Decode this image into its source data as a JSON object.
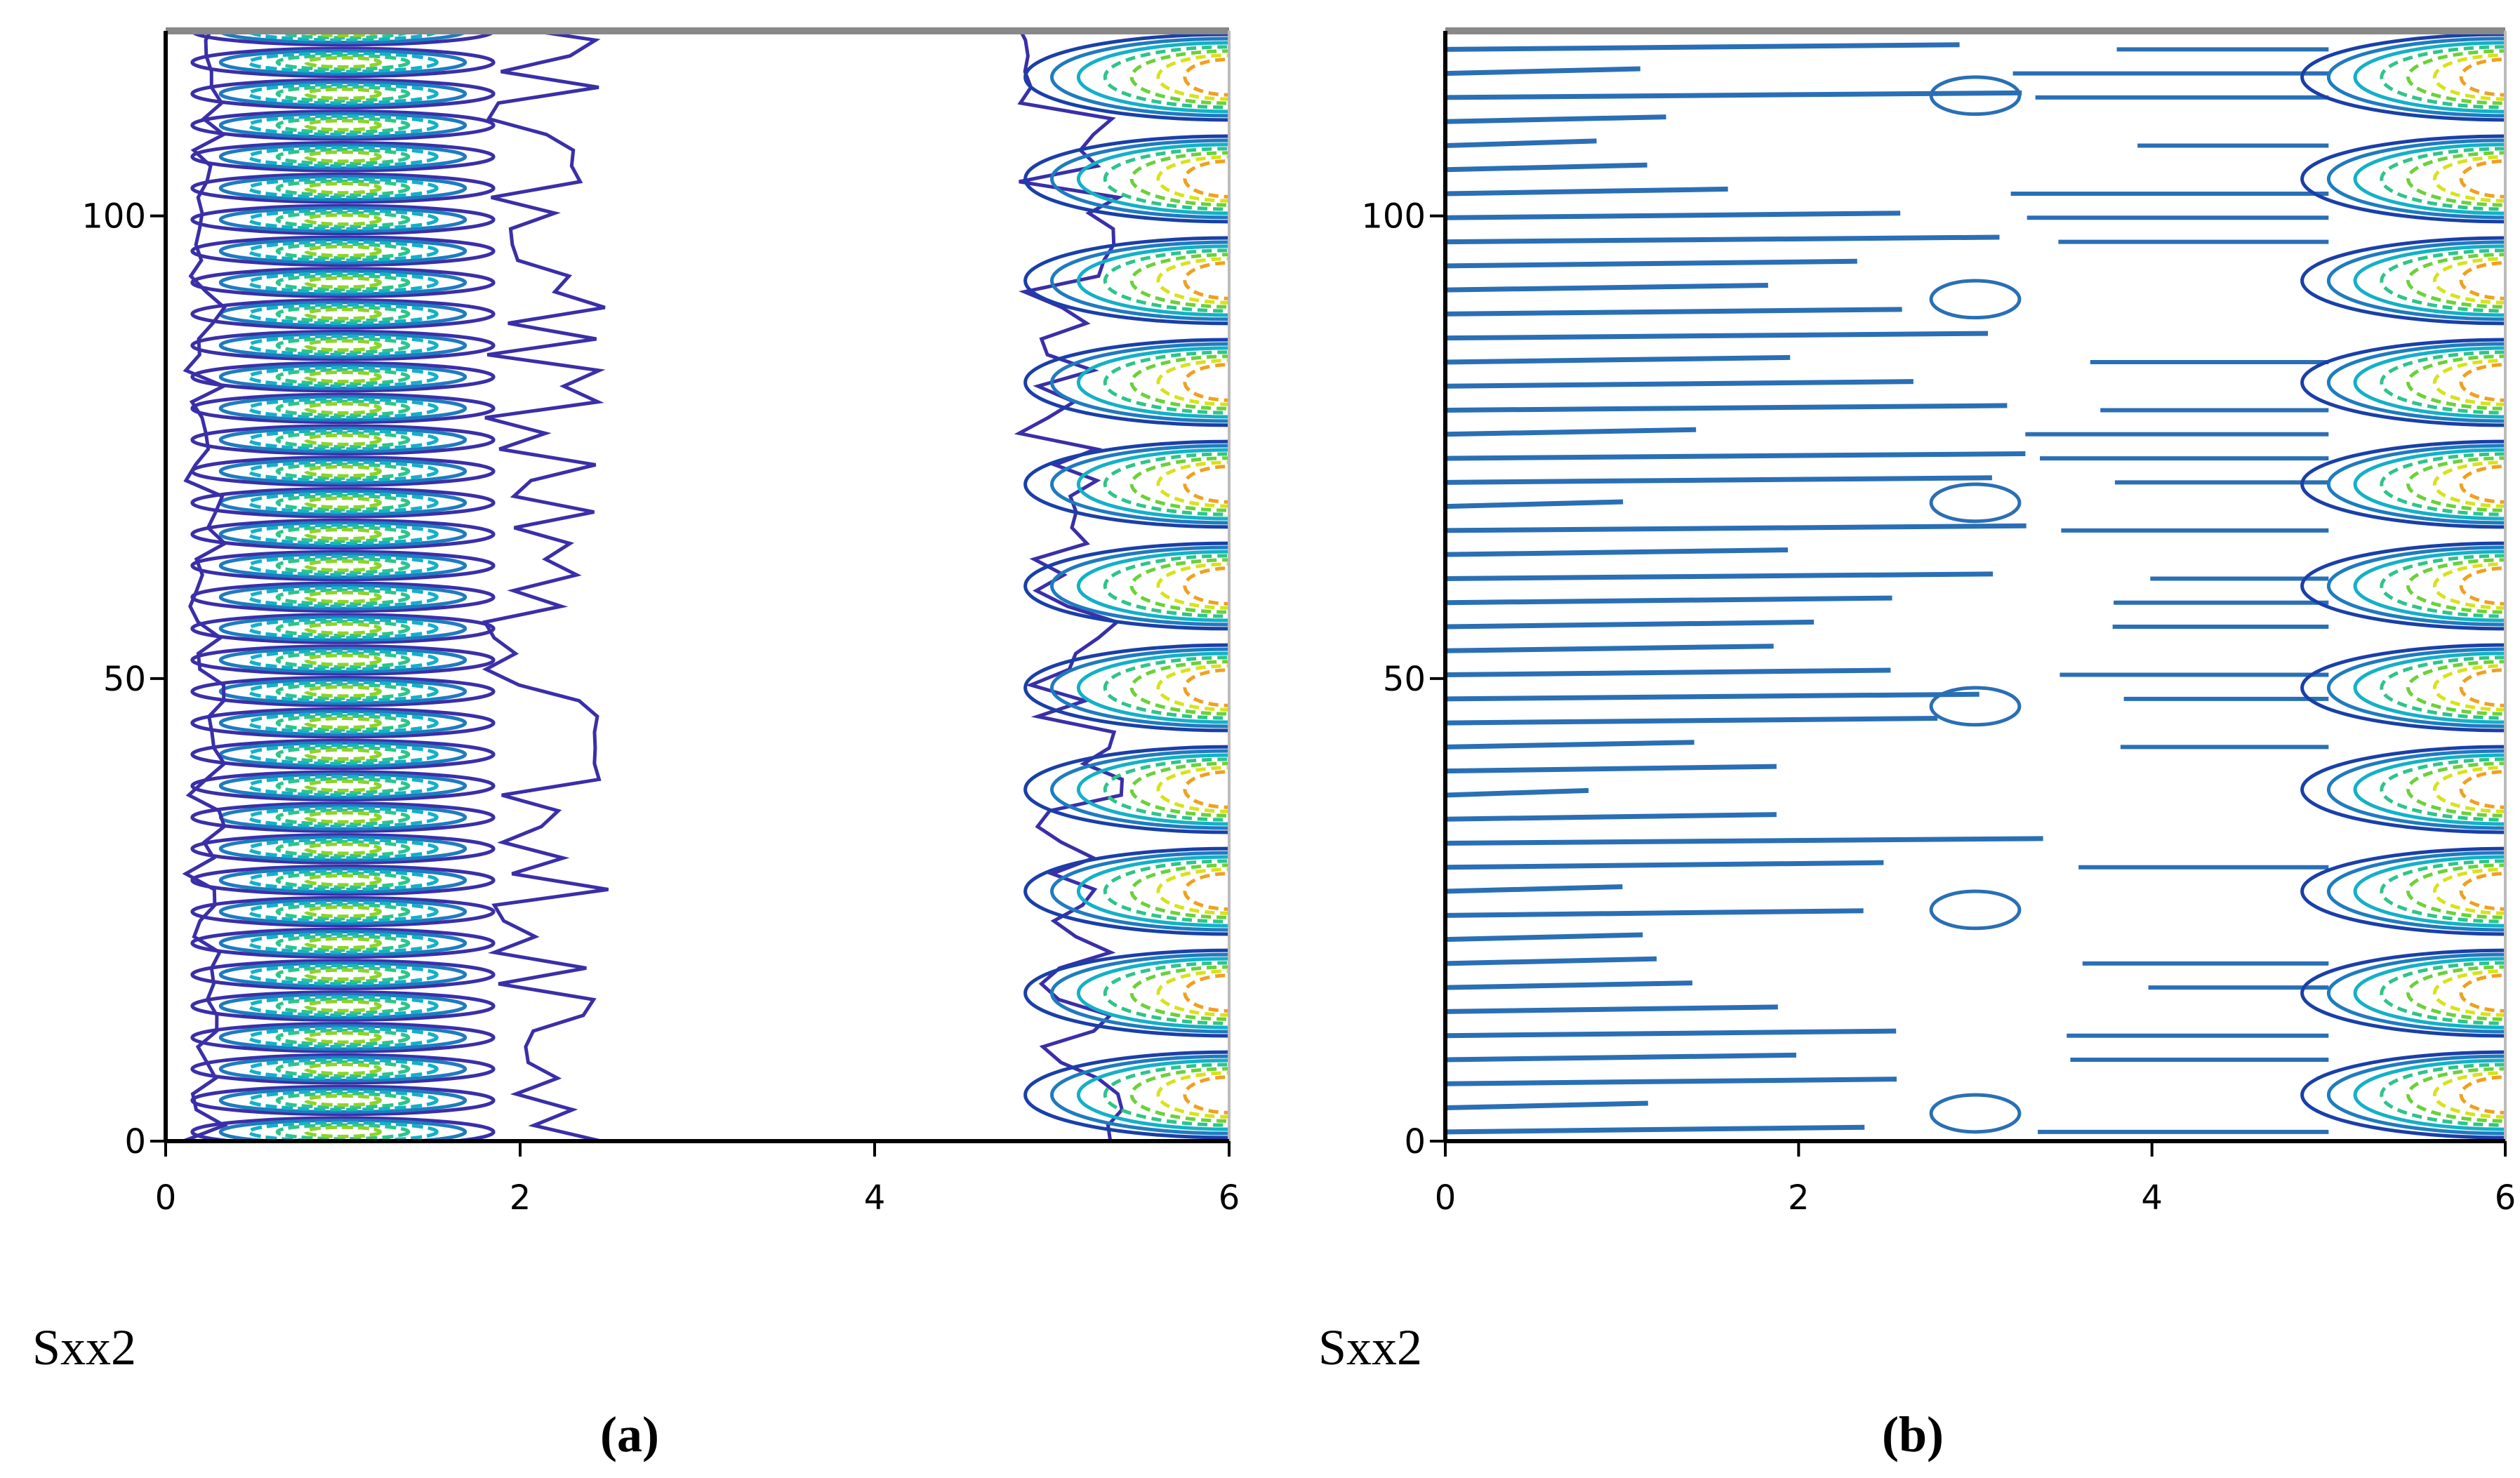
{
  "chart_data": [
    {
      "type": "contour",
      "x_label": "Sxx2",
      "caption": "(a)",
      "xlim": [
        0,
        6
      ],
      "xticks": [
        0,
        2,
        4,
        6
      ],
      "ylim": [
        0,
        120
      ],
      "yticks": [
        0,
        50,
        100
      ]
    },
    {
      "type": "contour",
      "x_label": "Sxx2",
      "caption": "(b)",
      "xlim": [
        0,
        6
      ],
      "xticks": [
        0,
        2,
        4,
        6
      ],
      "ylim": [
        0,
        120
      ],
      "yticks": [
        0,
        50,
        100
      ]
    }
  ]
}
